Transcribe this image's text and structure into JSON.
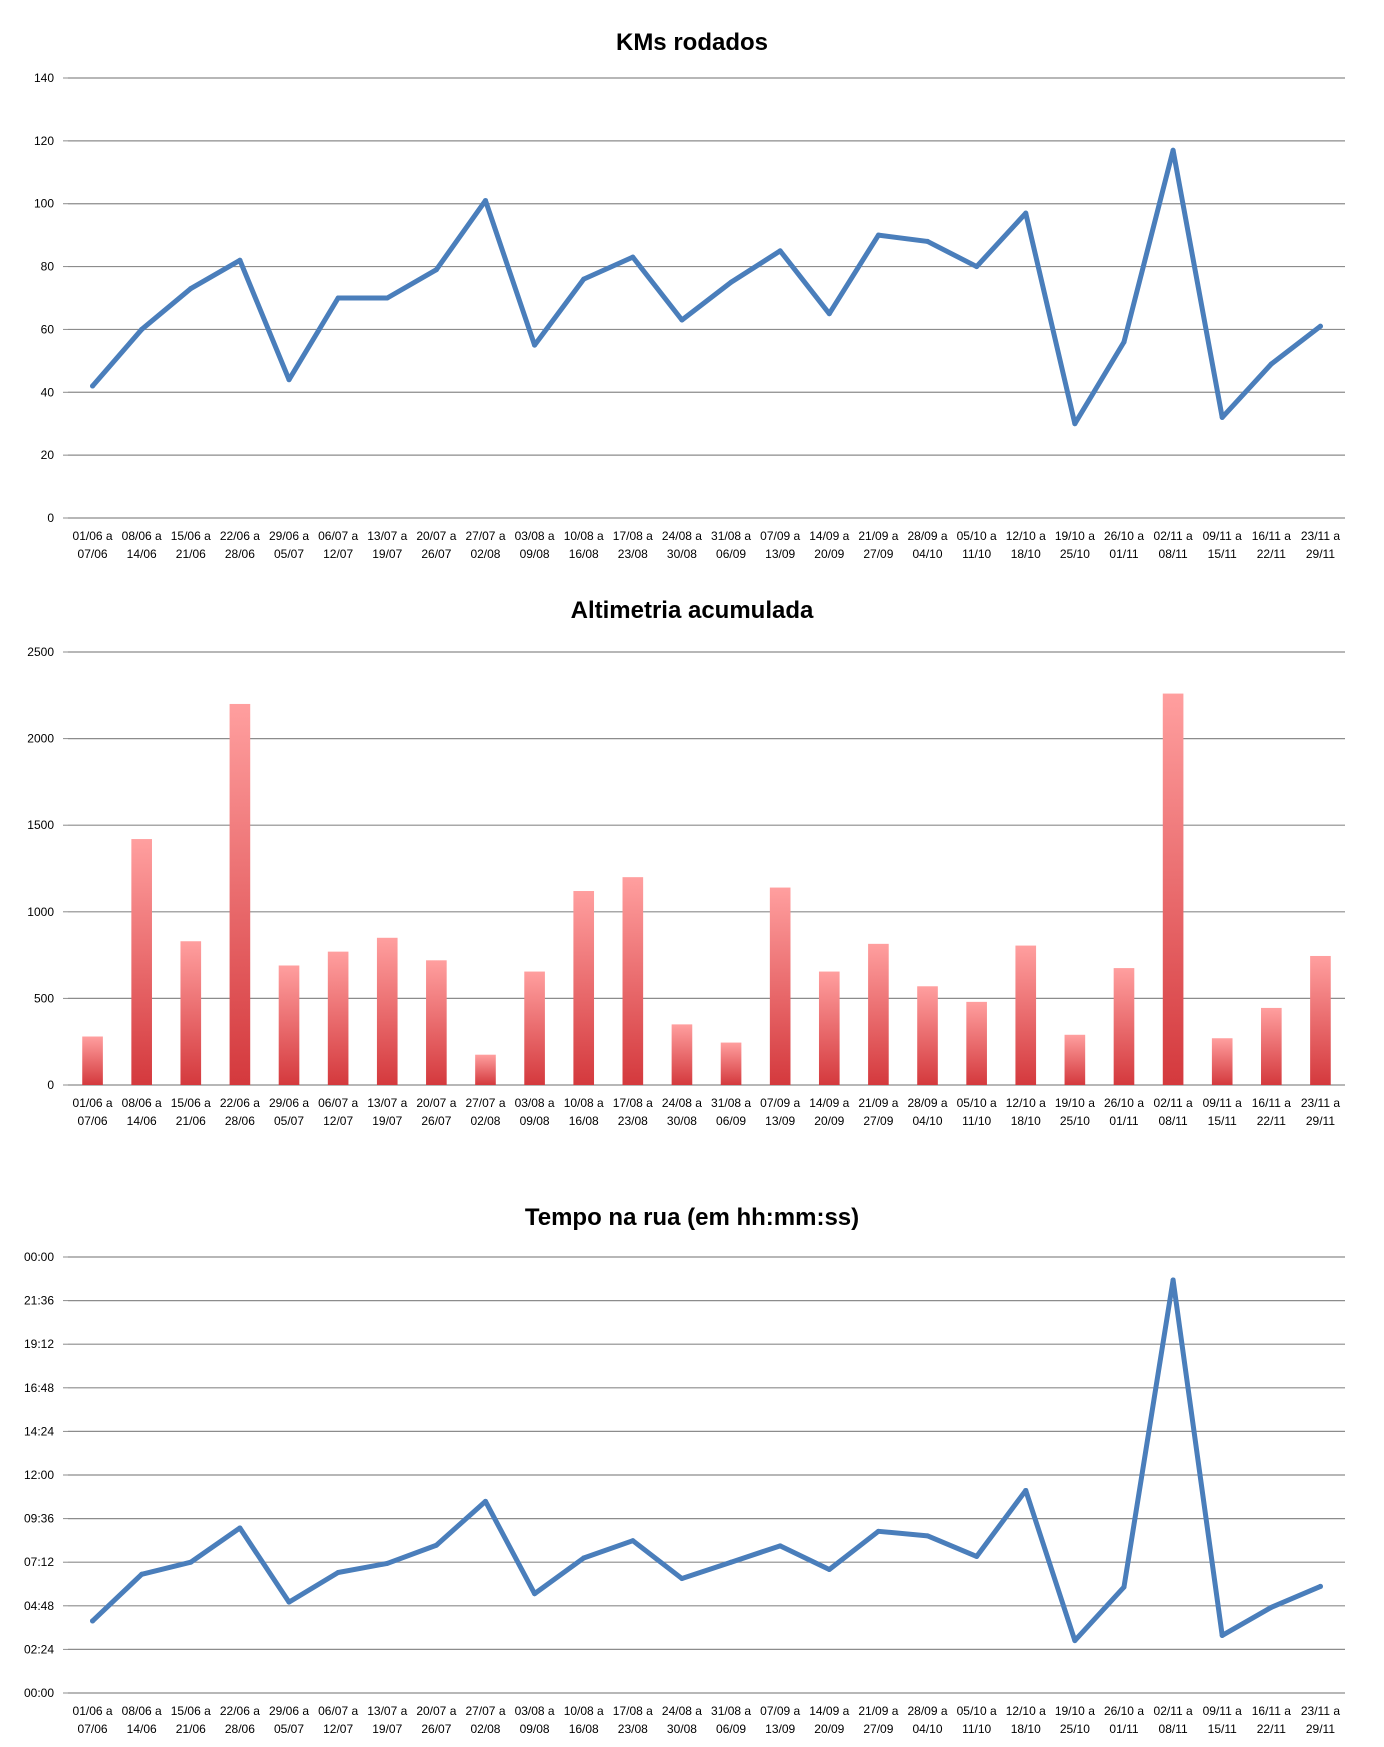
{
  "chart_data": [
    {
      "type": "line",
      "title": "KMs rodados",
      "xlabel": "",
      "ylabel": "",
      "ylim": [
        0,
        140
      ],
      "yticks": [
        "0",
        "20",
        "40",
        "60",
        "80",
        "100",
        "120",
        "140"
      ],
      "categories": [
        [
          "01/06 a",
          "07/06"
        ],
        [
          "08/06 a",
          "14/06"
        ],
        [
          "15/06 a",
          "21/06"
        ],
        [
          "22/06 a",
          "28/06"
        ],
        [
          "29/06 a",
          "05/07"
        ],
        [
          "06/07 a",
          "12/07"
        ],
        [
          "13/07 a",
          "19/07"
        ],
        [
          "20/07 a",
          "26/07"
        ],
        [
          "27/07 a",
          "02/08"
        ],
        [
          "03/08 a",
          "09/08"
        ],
        [
          "10/08 a",
          "16/08"
        ],
        [
          "17/08 a",
          "23/08"
        ],
        [
          "24/08 a",
          "30/08"
        ],
        [
          "31/08 a",
          "06/09"
        ],
        [
          "07/09 a",
          "13/09"
        ],
        [
          "14/09 a",
          "20/09"
        ],
        [
          "21/09 a",
          "27/09"
        ],
        [
          "28/09 a",
          "04/10"
        ],
        [
          "05/10 a",
          "11/10"
        ],
        [
          "12/10 a",
          "18/10"
        ],
        [
          "19/10 a",
          "25/10"
        ],
        [
          "26/10 a",
          "01/11"
        ],
        [
          "02/11 a",
          "08/11"
        ],
        [
          "09/11 a",
          "15/11"
        ],
        [
          "16/11 a",
          "22/11"
        ],
        [
          "23/11 a",
          "29/11"
        ]
      ],
      "series": [
        {
          "name": "KMs rodados",
          "color": "#4a7ebb",
          "values": [
            42,
            60,
            73,
            82,
            44,
            70,
            70,
            79,
            101,
            55,
            76,
            83,
            63,
            75,
            85,
            65,
            90,
            88,
            80,
            97,
            30,
            56,
            117,
            32,
            49,
            61
          ]
        }
      ]
    },
    {
      "type": "bar",
      "title": "Altimetria acumulada",
      "xlabel": "",
      "ylabel": "",
      "ylim": [
        0,
        2500
      ],
      "yticks": [
        "0",
        "500",
        "1000",
        "1500",
        "2000",
        "2500"
      ],
      "categories": [
        [
          "01/06 a",
          "07/06"
        ],
        [
          "08/06 a",
          "14/06"
        ],
        [
          "15/06 a",
          "21/06"
        ],
        [
          "22/06 a",
          "28/06"
        ],
        [
          "29/06 a",
          "05/07"
        ],
        [
          "06/07 a",
          "12/07"
        ],
        [
          "13/07 a",
          "19/07"
        ],
        [
          "20/07 a",
          "26/07"
        ],
        [
          "27/07 a",
          "02/08"
        ],
        [
          "03/08 a",
          "09/08"
        ],
        [
          "10/08 a",
          "16/08"
        ],
        [
          "17/08 a",
          "23/08"
        ],
        [
          "24/08 a",
          "30/08"
        ],
        [
          "31/08 a",
          "06/09"
        ],
        [
          "07/09 a",
          "13/09"
        ],
        [
          "14/09 a",
          "20/09"
        ],
        [
          "21/09 a",
          "27/09"
        ],
        [
          "28/09 a",
          "04/10"
        ],
        [
          "05/10 a",
          "11/10"
        ],
        [
          "12/10 a",
          "18/10"
        ],
        [
          "19/10 a",
          "25/10"
        ],
        [
          "26/10 a",
          "01/11"
        ],
        [
          "02/11 a",
          "08/11"
        ],
        [
          "09/11 a",
          "15/11"
        ],
        [
          "16/11 a",
          "22/11"
        ],
        [
          "23/11 a",
          "29/11"
        ]
      ],
      "series": [
        {
          "name": "Altimetria acumulada",
          "color_top": "#ff9f9f",
          "color_bottom": "#d4393d",
          "values": [
            280,
            1420,
            830,
            2200,
            690,
            770,
            850,
            720,
            175,
            655,
            1120,
            1200,
            350,
            245,
            1140,
            655,
            815,
            570,
            480,
            805,
            290,
            675,
            2260,
            270,
            445,
            745
          ]
        }
      ]
    },
    {
      "type": "line",
      "title": "Tempo na rua (em hh:mm:ss)",
      "xlabel": "",
      "ylabel": "",
      "ylim_minutes": [
        0,
        1440
      ],
      "yticks": [
        "00:00",
        "02:24",
        "04:48",
        "07:12",
        "09:36",
        "12:00",
        "14:24",
        "16:48",
        "19:12",
        "21:36",
        "00:00"
      ],
      "categories": [
        [
          "01/06 a",
          "07/06"
        ],
        [
          "08/06 a",
          "14/06"
        ],
        [
          "15/06 a",
          "21/06"
        ],
        [
          "22/06 a",
          "28/06"
        ],
        [
          "29/06 a",
          "05/07"
        ],
        [
          "06/07 a",
          "12/07"
        ],
        [
          "13/07 a",
          "19/07"
        ],
        [
          "20/07 a",
          "26/07"
        ],
        [
          "27/07 a",
          "02/08"
        ],
        [
          "03/08 a",
          "09/08"
        ],
        [
          "10/08 a",
          "16/08"
        ],
        [
          "17/08 a",
          "23/08"
        ],
        [
          "24/08 a",
          "30/08"
        ],
        [
          "31/08 a",
          "06/09"
        ],
        [
          "07/09 a",
          "13/09"
        ],
        [
          "14/09 a",
          "20/09"
        ],
        [
          "21/09 a",
          "27/09"
        ],
        [
          "28/09 a",
          "04/10"
        ],
        [
          "05/10 a",
          "11/10"
        ],
        [
          "12/10 a",
          "18/10"
        ],
        [
          "19/10 a",
          "25/10"
        ],
        [
          "26/10 a",
          "01/11"
        ],
        [
          "02/11 a",
          "08/11"
        ],
        [
          "09/11 a",
          "15/11"
        ],
        [
          "16/11 a",
          "22/11"
        ],
        [
          "23/11 a",
          "29/11"
        ]
      ],
      "series": [
        {
          "name": "Tempo na rua",
          "color": "#4a7ebb",
          "unit": "minutes",
          "values": [
            238,
            392,
            432,
            545,
            300,
            398,
            428,
            488,
            633,
            328,
            446,
            503,
            378,
            432,
            486,
            408,
            534,
            519,
            451,
            669,
            173,
            350,
            1364,
            190,
            283,
            352
          ]
        }
      ]
    }
  ]
}
